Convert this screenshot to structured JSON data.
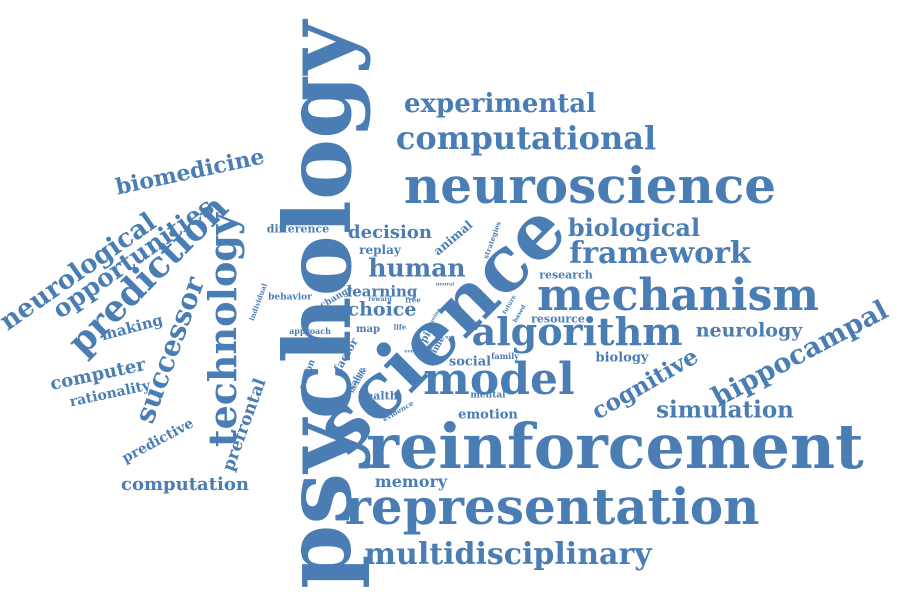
{
  "colors": {
    "word": "#4a7db3",
    "background": "#ffffff"
  },
  "words": [
    "psychology",
    "science",
    "reinforcement",
    "neuroscience",
    "representation",
    "mechanism",
    "model",
    "algorithm",
    "computational",
    "framework",
    "multidisciplinary",
    "experimental",
    "technology",
    "prediction",
    "hippocampal",
    "biological",
    "human",
    "neurological",
    "opportunities",
    "biomedicine",
    "successor",
    "simulation",
    "cognitive",
    "choice",
    "decision",
    "computation",
    "neurology",
    "computer",
    "learning",
    "prefrontal",
    "memory",
    "rationality",
    "predictive",
    "making",
    "emotion",
    "social",
    "biology",
    "difference",
    "replay",
    "animal",
    "health",
    "research",
    "resource",
    "behavior",
    "change",
    "approach",
    "action",
    "map",
    "factor",
    "topic",
    "time",
    "value",
    "family",
    "mental",
    "individual",
    "flexible",
    "life",
    "free",
    "evidence",
    "strategies",
    "reward",
    "based",
    "future",
    "neural",
    "moving",
    "event",
    "use"
  ]
}
